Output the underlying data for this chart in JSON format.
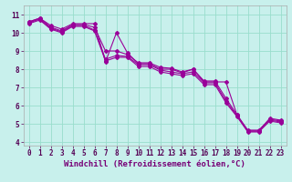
{
  "xlabel": "Windchill (Refroidissement éolien,°C)",
  "background_color": "#c8f0ec",
  "line_color": "#990099",
  "grid_color": "#99ddcc",
  "xlim": [
    -0.5,
    23.5
  ],
  "ylim": [
    3.8,
    11.5
  ],
  "xticks": [
    0,
    1,
    2,
    3,
    4,
    5,
    6,
    7,
    8,
    9,
    10,
    11,
    12,
    13,
    14,
    15,
    16,
    17,
    18,
    19,
    20,
    21,
    22,
    23
  ],
  "yticks": [
    4,
    5,
    6,
    7,
    8,
    9,
    10,
    11
  ],
  "series": [
    [
      10.6,
      10.8,
      10.4,
      10.2,
      10.5,
      10.5,
      10.5,
      8.4,
      10.0,
      8.9,
      8.3,
      8.3,
      8.0,
      8.0,
      7.8,
      8.0,
      7.3,
      7.3,
      7.3,
      5.5,
      4.6,
      4.6,
      5.3,
      5.2
    ],
    [
      10.6,
      10.8,
      10.3,
      10.1,
      10.45,
      10.45,
      10.3,
      9.0,
      9.0,
      8.8,
      8.35,
      8.35,
      8.1,
      8.05,
      7.85,
      8.0,
      7.35,
      7.35,
      6.4,
      5.5,
      4.65,
      4.65,
      5.25,
      5.15
    ],
    [
      10.55,
      10.75,
      10.25,
      10.05,
      10.4,
      10.4,
      10.15,
      8.55,
      8.75,
      8.7,
      8.25,
      8.25,
      7.95,
      7.85,
      7.75,
      7.85,
      7.25,
      7.25,
      6.25,
      5.45,
      4.6,
      4.6,
      5.2,
      5.1
    ],
    [
      10.5,
      10.7,
      10.2,
      10.0,
      10.35,
      10.35,
      10.1,
      8.45,
      8.65,
      8.65,
      8.15,
      8.15,
      7.85,
      7.75,
      7.65,
      7.75,
      7.15,
      7.15,
      6.15,
      5.4,
      4.55,
      4.55,
      5.15,
      5.05
    ]
  ],
  "marker": "D",
  "markersize": 2.0,
  "linewidth": 0.8,
  "xlabel_fontsize": 6.5,
  "tick_fontsize": 5.5
}
